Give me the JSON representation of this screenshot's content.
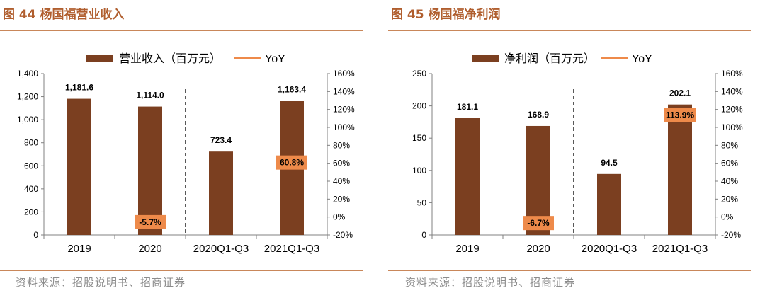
{
  "source_text": "资料来源：招股说明书、招商证券",
  "chart_data": [
    {
      "type": "bar",
      "title": "图 44 杨国福营业收入",
      "categories": [
        "2019",
        "2020",
        "2020Q1-Q3",
        "2021Q1-Q3"
      ],
      "series": [
        {
          "name": "营业收入（百万元）",
          "type": "bar",
          "color": "#7b3f20",
          "axis": "left",
          "values": [
            1181.6,
            1114.0,
            723.4,
            1163.4
          ],
          "labels": [
            "1,181.6",
            "1,114.0",
            "723.4",
            "1,163.4"
          ]
        },
        {
          "name": "YoY",
          "type": "line",
          "color": "#ee8a4a",
          "axis": "right",
          "values": [
            null,
            -5.7,
            null,
            60.8
          ],
          "labels": [
            "",
            "-5.7%",
            "",
            "60.8%"
          ]
        }
      ],
      "ylim": [
        0,
        1400
      ],
      "yticks": [
        0,
        200,
        400,
        600,
        800,
        1000,
        1200,
        1400
      ],
      "ytick_labels": [
        "0",
        "200",
        "400",
        "600",
        "800",
        "1,000",
        "1,200",
        "1,400"
      ],
      "y2lim": [
        -20,
        160
      ],
      "y2ticks": [
        -20,
        0,
        20,
        40,
        60,
        80,
        100,
        120,
        140,
        160
      ],
      "y2tick_labels": [
        "-20%",
        "0%",
        "20%",
        "40%",
        "60%",
        "80%",
        "100%",
        "120%",
        "140%",
        "160%"
      ],
      "divider_after_index": 1,
      "legend_position": "top"
    },
    {
      "type": "bar",
      "title": "图 45 杨国福净利润",
      "categories": [
        "2019",
        "2020",
        "2020Q1-Q3",
        "2021Q1-Q3"
      ],
      "series": [
        {
          "name": "净利润（百万元）",
          "type": "bar",
          "color": "#7b3f20",
          "axis": "left",
          "values": [
            181.1,
            168.9,
            94.5,
            202.1
          ],
          "labels": [
            "181.1",
            "168.9",
            "94.5",
            "202.1"
          ]
        },
        {
          "name": "YoY",
          "type": "line",
          "color": "#ee8a4a",
          "axis": "right",
          "values": [
            null,
            -6.7,
            null,
            113.9
          ],
          "labels": [
            "",
            "-6.7%",
            "",
            "113.9%"
          ]
        }
      ],
      "ylim": [
        0,
        250
      ],
      "yticks": [
        0,
        50,
        100,
        150,
        200,
        250
      ],
      "ytick_labels": [
        "0",
        "50",
        "100",
        "150",
        "200",
        "250"
      ],
      "y2lim": [
        -20,
        160
      ],
      "y2ticks": [
        -20,
        0,
        20,
        40,
        60,
        80,
        100,
        120,
        140,
        160
      ],
      "y2tick_labels": [
        "-20%",
        "0%",
        "20%",
        "40%",
        "60%",
        "80%",
        "100%",
        "120%",
        "140%",
        "160%"
      ],
      "divider_after_index": 1,
      "legend_position": "top"
    }
  ]
}
